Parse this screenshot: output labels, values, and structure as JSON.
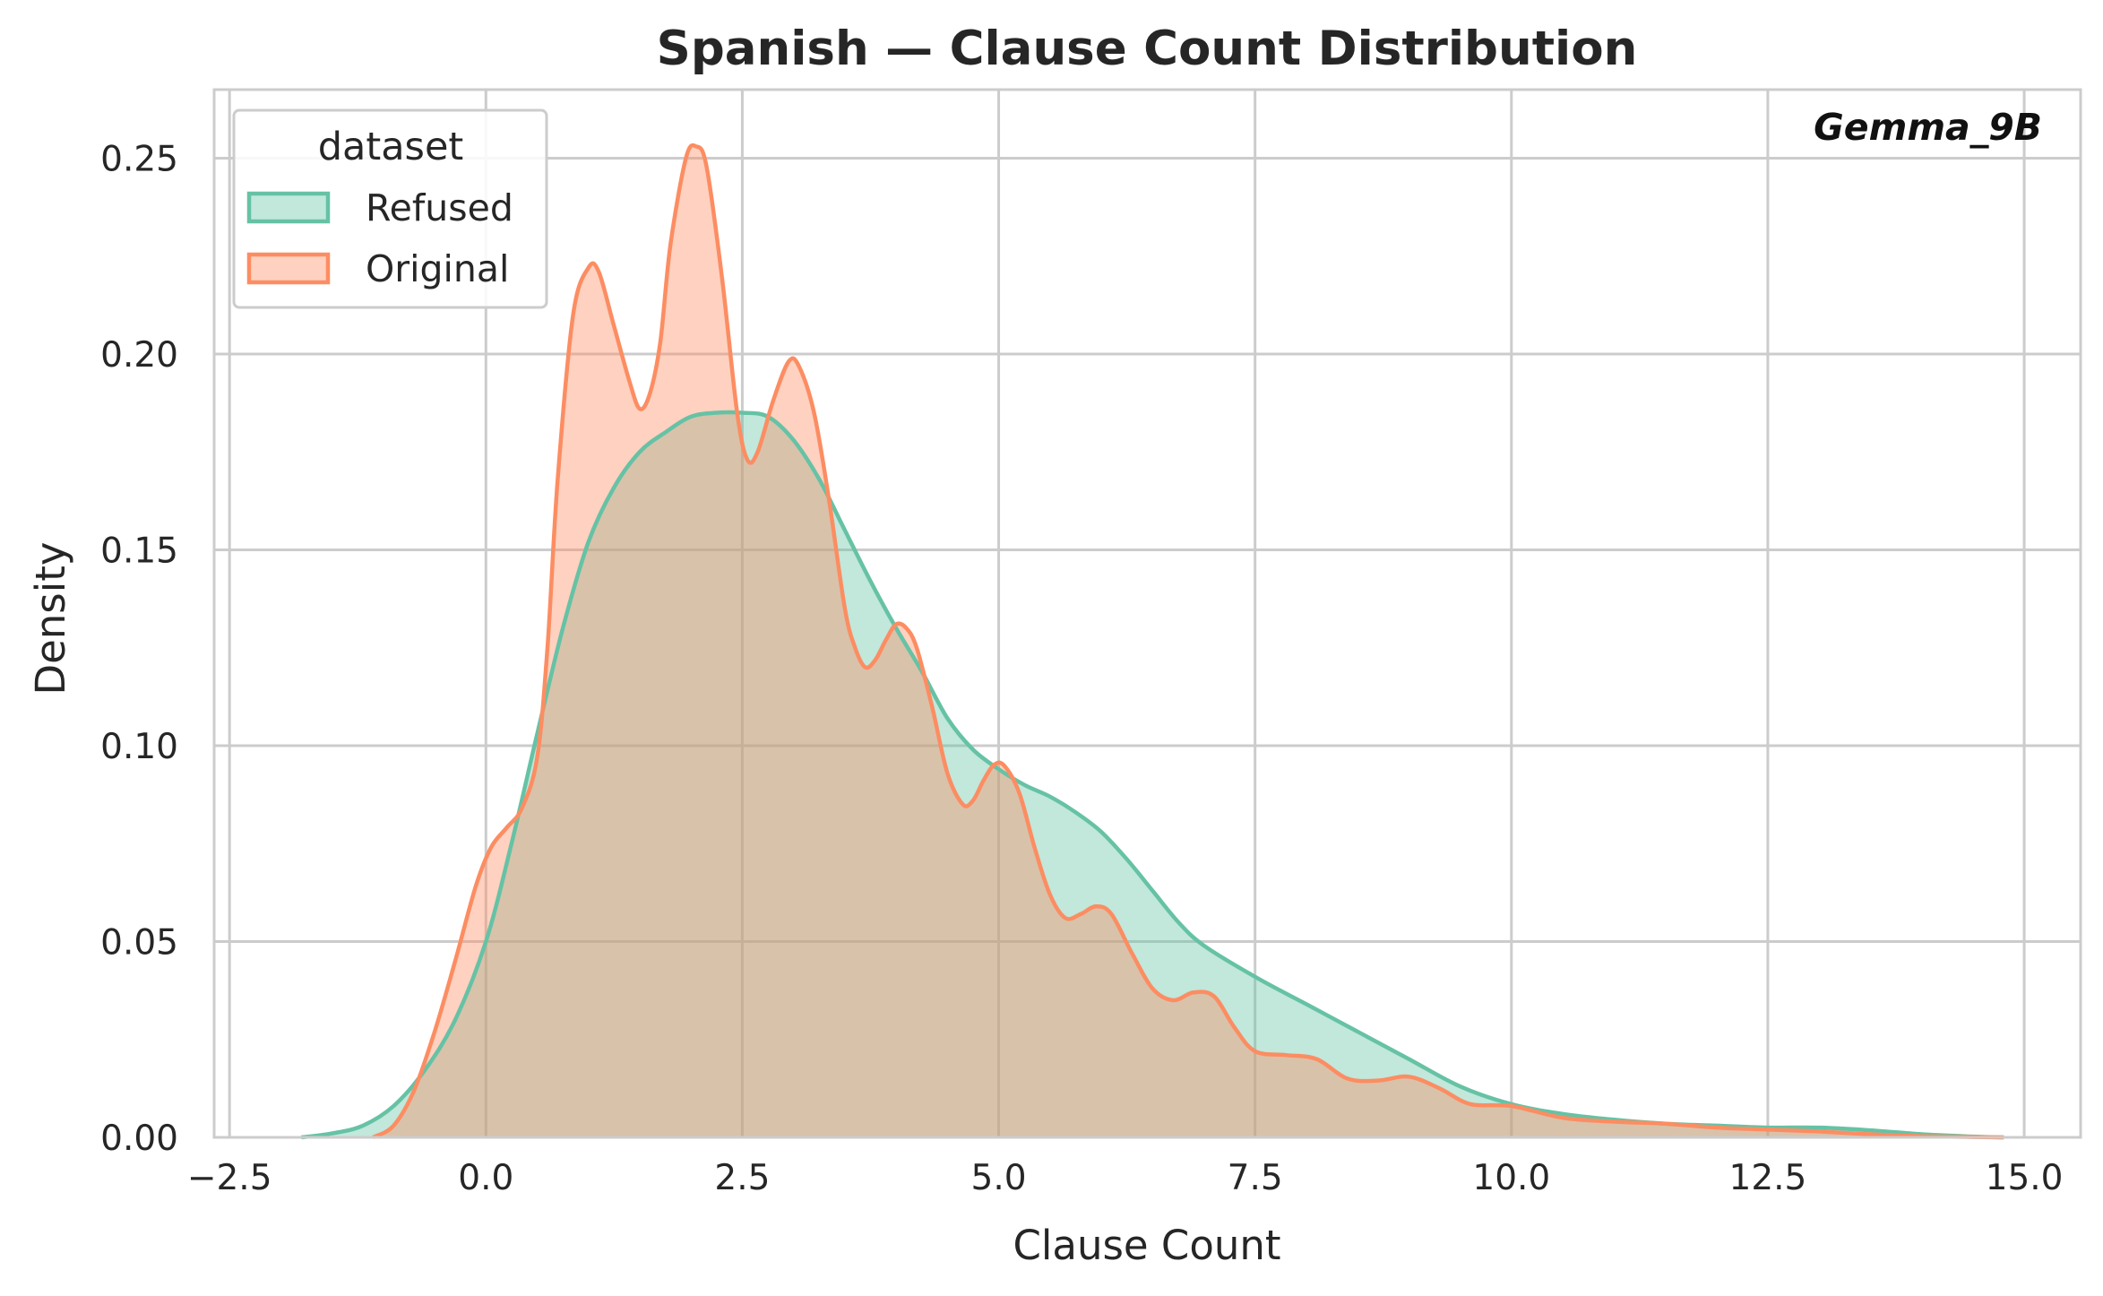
{
  "chart_data": {
    "type": "area",
    "title": "Spanish — Clause Count Distribution",
    "xlabel": "Clause Count",
    "ylabel": "Density",
    "annotation": "Gemma_9B",
    "xlim": [
      -2.65,
      15.55
    ],
    "ylim": [
      0,
      0.2675
    ],
    "x_ticks": [
      -2.5,
      0,
      2.5,
      5,
      7.5,
      10,
      12.5,
      15
    ],
    "x_tick_labels": [
      "−2.5",
      "0.0",
      "2.5",
      "5.0",
      "7.5",
      "10.0",
      "12.5",
      "15.0"
    ],
    "y_ticks": [
      0,
      0.05,
      0.1,
      0.15,
      0.2,
      0.25
    ],
    "y_tick_labels": [
      "0.00",
      "0.05",
      "0.10",
      "0.15",
      "0.20",
      "0.25"
    ],
    "grid": true,
    "legend": {
      "title": "dataset",
      "position": "top-left"
    },
    "series": [
      {
        "name": "Refused",
        "color": "#66c2a5",
        "points": [
          [
            -1.8,
            0.0
          ],
          [
            -1.5,
            0.001
          ],
          [
            -1.2,
            0.003
          ],
          [
            -0.9,
            0.008
          ],
          [
            -0.6,
            0.017
          ],
          [
            -0.3,
            0.03
          ],
          [
            0.0,
            0.05
          ],
          [
            0.25,
            0.075
          ],
          [
            0.5,
            0.103
          ],
          [
            0.75,
            0.13
          ],
          [
            1.0,
            0.152
          ],
          [
            1.25,
            0.166
          ],
          [
            1.5,
            0.175
          ],
          [
            1.75,
            0.18
          ],
          [
            2.0,
            0.184
          ],
          [
            2.25,
            0.185
          ],
          [
            2.5,
            0.185
          ],
          [
            2.75,
            0.184
          ],
          [
            3.0,
            0.178
          ],
          [
            3.25,
            0.168
          ],
          [
            3.5,
            0.155
          ],
          [
            3.75,
            0.142
          ],
          [
            4.0,
            0.13
          ],
          [
            4.25,
            0.119
          ],
          [
            4.5,
            0.107
          ],
          [
            4.75,
            0.099
          ],
          [
            5.0,
            0.094
          ],
          [
            5.25,
            0.09
          ],
          [
            5.5,
            0.087
          ],
          [
            5.75,
            0.083
          ],
          [
            6.0,
            0.078
          ],
          [
            6.25,
            0.071
          ],
          [
            6.5,
            0.063
          ],
          [
            6.75,
            0.055
          ],
          [
            7.0,
            0.049
          ],
          [
            7.5,
            0.041
          ],
          [
            8.0,
            0.034
          ],
          [
            8.5,
            0.027
          ],
          [
            9.0,
            0.02
          ],
          [
            9.5,
            0.013
          ],
          [
            10.0,
            0.0085
          ],
          [
            10.5,
            0.006
          ],
          [
            11.0,
            0.0045
          ],
          [
            11.5,
            0.0035
          ],
          [
            12.0,
            0.003
          ],
          [
            12.5,
            0.0025
          ],
          [
            13.0,
            0.0025
          ],
          [
            13.5,
            0.0018
          ],
          [
            14.0,
            0.0008
          ],
          [
            14.5,
            0.0002
          ],
          [
            14.8,
            0.0
          ]
        ]
      },
      {
        "name": "Original",
        "color": "#fc8d62",
        "points": [
          [
            -1.1,
            0.0
          ],
          [
            -0.9,
            0.003
          ],
          [
            -0.7,
            0.012
          ],
          [
            -0.5,
            0.027
          ],
          [
            -0.3,
            0.045
          ],
          [
            -0.1,
            0.064
          ],
          [
            0.05,
            0.074
          ],
          [
            0.2,
            0.079
          ],
          [
            0.35,
            0.084
          ],
          [
            0.5,
            0.097
          ],
          [
            0.6,
            0.125
          ],
          [
            0.7,
            0.168
          ],
          [
            0.85,
            0.21
          ],
          [
            1.0,
            0.222
          ],
          [
            1.1,
            0.221
          ],
          [
            1.25,
            0.207
          ],
          [
            1.4,
            0.193
          ],
          [
            1.5,
            0.186
          ],
          [
            1.6,
            0.19
          ],
          [
            1.7,
            0.203
          ],
          [
            1.8,
            0.228
          ],
          [
            1.95,
            0.25
          ],
          [
            2.05,
            0.253
          ],
          [
            2.15,
            0.248
          ],
          [
            2.3,
            0.22
          ],
          [
            2.45,
            0.185
          ],
          [
            2.55,
            0.173
          ],
          [
            2.65,
            0.175
          ],
          [
            2.8,
            0.188
          ],
          [
            2.95,
            0.198
          ],
          [
            3.05,
            0.197
          ],
          [
            3.2,
            0.185
          ],
          [
            3.35,
            0.162
          ],
          [
            3.5,
            0.135
          ],
          [
            3.6,
            0.125
          ],
          [
            3.7,
            0.12
          ],
          [
            3.8,
            0.122
          ],
          [
            3.9,
            0.127
          ],
          [
            4.0,
            0.131
          ],
          [
            4.1,
            0.13
          ],
          [
            4.2,
            0.125
          ],
          [
            4.35,
            0.11
          ],
          [
            4.5,
            0.093
          ],
          [
            4.65,
            0.085
          ],
          [
            4.75,
            0.086
          ],
          [
            4.85,
            0.091
          ],
          [
            4.95,
            0.095
          ],
          [
            5.05,
            0.095
          ],
          [
            5.2,
            0.088
          ],
          [
            5.35,
            0.074
          ],
          [
            5.5,
            0.062
          ],
          [
            5.65,
            0.056
          ],
          [
            5.8,
            0.057
          ],
          [
            5.95,
            0.059
          ],
          [
            6.1,
            0.057
          ],
          [
            6.3,
            0.047
          ],
          [
            6.5,
            0.038
          ],
          [
            6.7,
            0.035
          ],
          [
            6.9,
            0.037
          ],
          [
            7.1,
            0.036
          ],
          [
            7.3,
            0.028
          ],
          [
            7.5,
            0.022
          ],
          [
            7.8,
            0.021
          ],
          [
            8.1,
            0.02
          ],
          [
            8.4,
            0.015
          ],
          [
            8.7,
            0.0145
          ],
          [
            9.0,
            0.0155
          ],
          [
            9.3,
            0.0125
          ],
          [
            9.6,
            0.0085
          ],
          [
            10.0,
            0.008
          ],
          [
            10.5,
            0.005
          ],
          [
            11.0,
            0.004
          ],
          [
            11.5,
            0.0035
          ],
          [
            12.0,
            0.0025
          ],
          [
            12.5,
            0.002
          ],
          [
            13.0,
            0.0015
          ],
          [
            13.5,
            0.0008
          ],
          [
            14.0,
            0.0003
          ],
          [
            14.5,
            0.0001
          ],
          [
            14.8,
            0.0
          ]
        ]
      }
    ]
  }
}
